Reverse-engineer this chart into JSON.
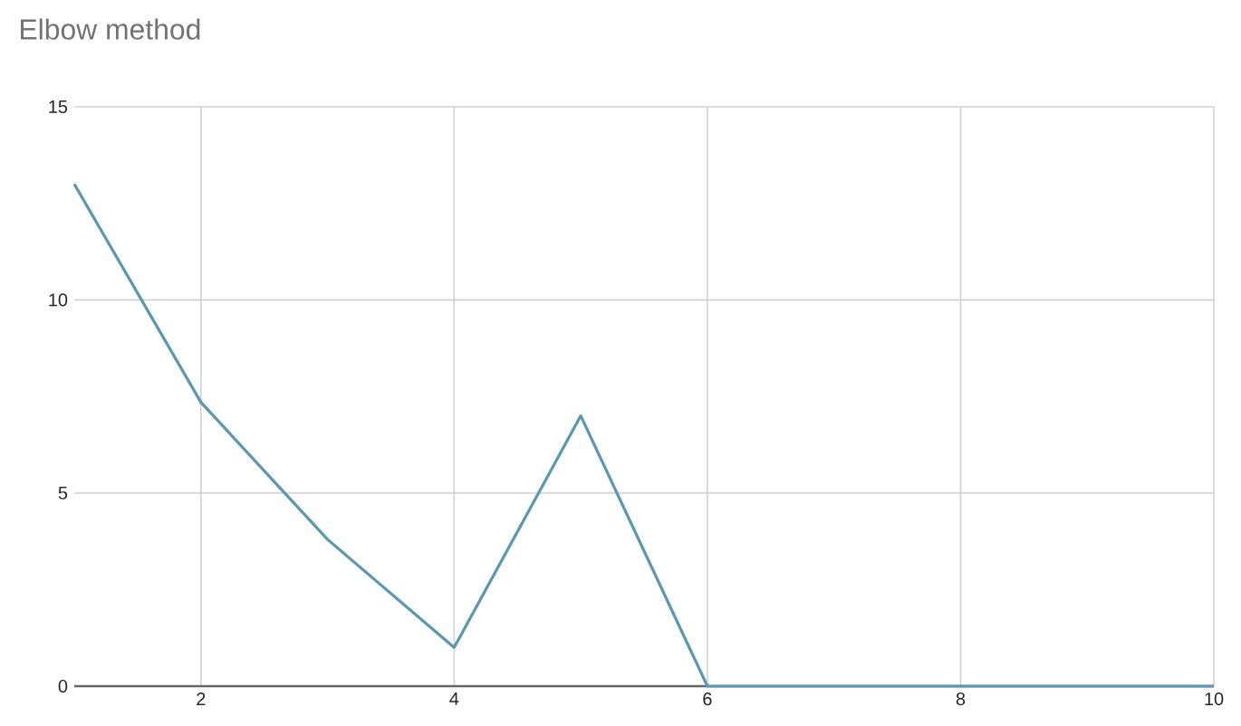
{
  "chart_data": {
    "type": "line",
    "title": "Elbow method",
    "x": [
      1,
      2,
      3,
      4,
      5,
      6,
      7,
      8,
      9,
      10
    ],
    "series": [
      {
        "color": "#5b97b1",
        "values": [
          13,
          7.35,
          3.8,
          1,
          7,
          0,
          0,
          0,
          0,
          0
        ]
      }
    ],
    "xlim": [
      1,
      10
    ],
    "xticks": [
      2,
      4,
      6,
      8,
      10
    ],
    "ylim": [
      0,
      15
    ],
    "yticks": [
      0,
      5,
      10,
      15
    ],
    "grid": true
  }
}
